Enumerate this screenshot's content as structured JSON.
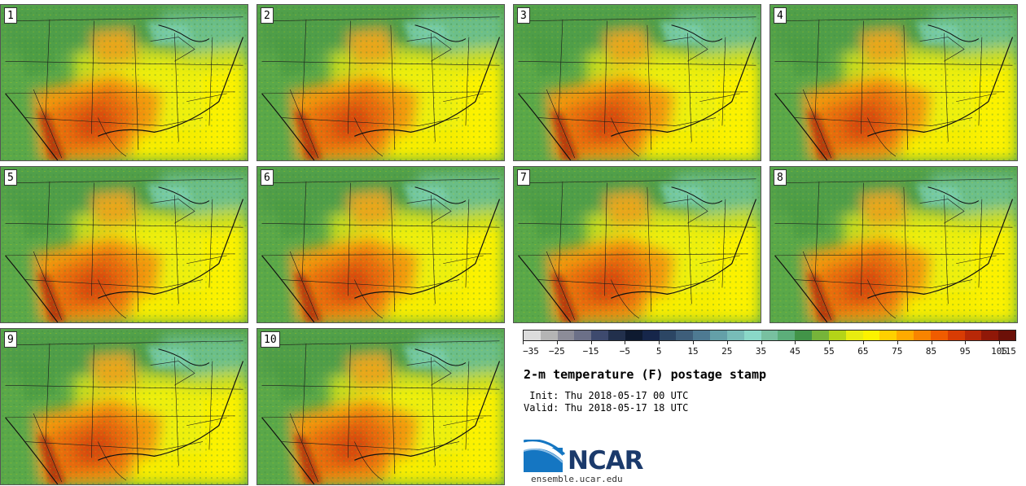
{
  "title": "2-m temperature (F) postage stamp",
  "init_text": " Init: Thu 2018-05-17 00 UTC",
  "valid_text": "Valid: Thu 2018-05-17 18 UTC",
  "members": [
    "1",
    "2",
    "3",
    "4",
    "5",
    "6",
    "7",
    "8",
    "9",
    "10"
  ],
  "colorbar": {
    "colors": [
      "#dcdcdc",
      "#b4b4b4",
      "#8c8c98",
      "#6c7088",
      "#3e4a6e",
      "#22304c",
      "#0e1a30",
      "#16264a",
      "#2c4664",
      "#3e5e7a",
      "#4e7a92",
      "#64a0a8",
      "#78bcb8",
      "#8ad8c8",
      "#78c0a0",
      "#5cae7a",
      "#429448",
      "#76b43a",
      "#b4d418",
      "#e8ec10",
      "#fcf200",
      "#ffd000",
      "#ffaa00",
      "#f88400",
      "#f05c00",
      "#d83c04",
      "#b82808",
      "#901808",
      "#6c1008"
    ],
    "tick_labels": [
      "−35",
      "−25",
      "−15",
      "−5",
      "5",
      "15",
      "25",
      "35",
      "45",
      "55",
      "65",
      "75",
      "85",
      "95",
      "105",
      "115"
    ]
  },
  "logo": {
    "name": "NCAR",
    "url": "ensemble.ucar.edu"
  }
}
